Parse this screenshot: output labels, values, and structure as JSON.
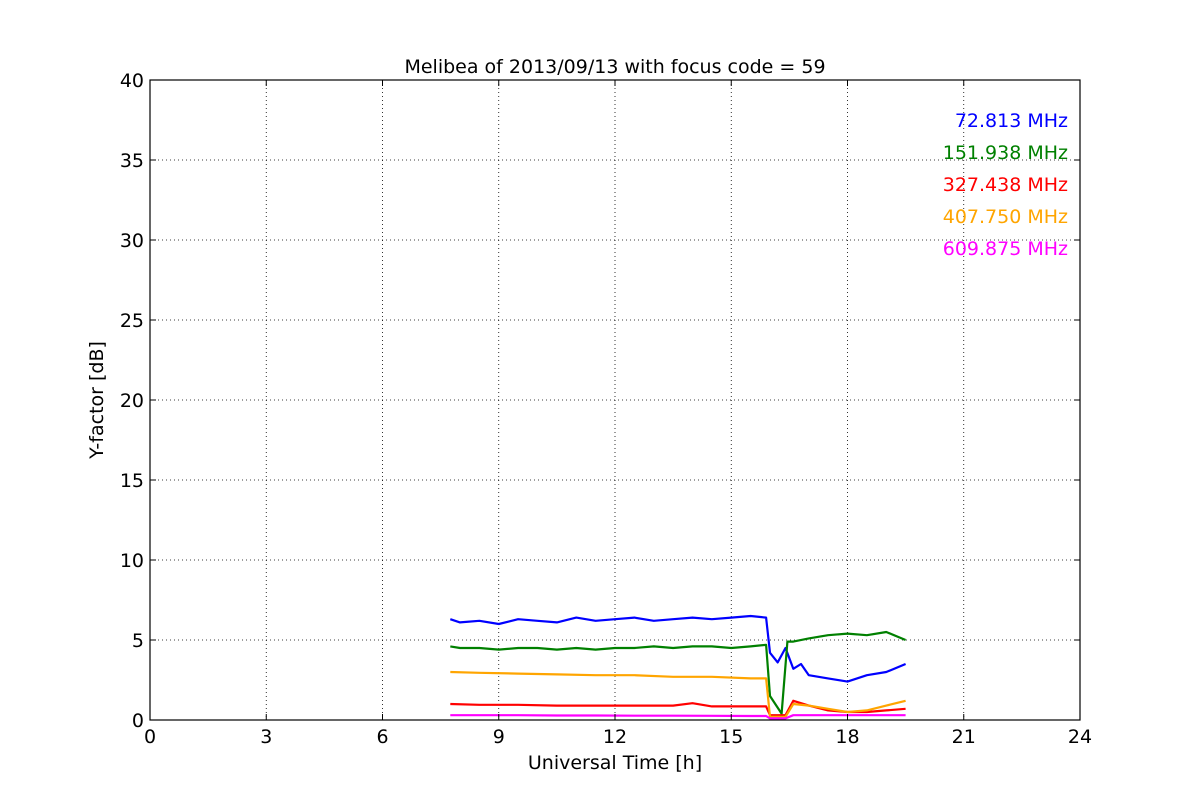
{
  "chart_data": {
    "type": "line",
    "title": "Melibea of 2013/09/13 with focus code = 59",
    "xlabel": "Universal Time [h]",
    "ylabel": "Y-factor [dB]",
    "xlim": [
      0,
      24
    ],
    "ylim": [
      0,
      40
    ],
    "xticks": [
      0,
      3,
      6,
      9,
      12,
      15,
      18,
      21,
      24
    ],
    "yticks": [
      0,
      5,
      10,
      15,
      20,
      25,
      30,
      35,
      40
    ],
    "grid": true,
    "legend_position": "top-right",
    "series": [
      {
        "name": "72.813 MHz",
        "color": "#0000ff",
        "x": [
          7.75,
          8.0,
          8.5,
          9.0,
          9.5,
          10.0,
          10.5,
          11.0,
          11.5,
          12.0,
          12.5,
          13.0,
          13.5,
          14.0,
          14.5,
          15.0,
          15.5,
          15.9,
          16.0,
          16.2,
          16.4,
          16.6,
          16.8,
          17.0,
          17.5,
          18.0,
          18.5,
          19.0,
          19.5
        ],
        "values": [
          6.3,
          6.1,
          6.2,
          6.0,
          6.3,
          6.2,
          6.1,
          6.4,
          6.2,
          6.3,
          6.4,
          6.2,
          6.3,
          6.4,
          6.3,
          6.4,
          6.5,
          6.4,
          4.2,
          3.6,
          4.5,
          3.2,
          3.5,
          2.8,
          2.6,
          2.4,
          2.8,
          3.0,
          3.5
        ]
      },
      {
        "name": "151.938 MHz",
        "color": "#008000",
        "x": [
          7.75,
          8.0,
          8.5,
          9.0,
          9.5,
          10.0,
          10.5,
          11.0,
          11.5,
          12.0,
          12.5,
          13.0,
          13.5,
          14.0,
          14.5,
          15.0,
          15.5,
          15.9,
          16.0,
          16.3,
          16.45,
          16.6,
          17.0,
          17.5,
          18.0,
          18.5,
          19.0,
          19.5
        ],
        "values": [
          4.6,
          4.5,
          4.5,
          4.4,
          4.5,
          4.5,
          4.4,
          4.5,
          4.4,
          4.5,
          4.5,
          4.6,
          4.5,
          4.6,
          4.6,
          4.5,
          4.6,
          4.7,
          1.5,
          0.4,
          4.9,
          4.9,
          5.1,
          5.3,
          5.4,
          5.3,
          5.5,
          5.0
        ]
      },
      {
        "name": "327.438 MHz",
        "color": "#ff0000",
        "x": [
          7.75,
          8.5,
          9.5,
          10.5,
          11.5,
          12.5,
          13.5,
          14.0,
          14.5,
          15.5,
          15.9,
          16.0,
          16.4,
          16.6,
          17.0,
          17.5,
          18.0,
          18.5,
          19.0,
          19.5
        ],
        "values": [
          1.0,
          0.95,
          0.95,
          0.9,
          0.9,
          0.9,
          0.9,
          1.05,
          0.85,
          0.85,
          0.85,
          0.3,
          0.3,
          1.2,
          0.9,
          0.6,
          0.5,
          0.5,
          0.6,
          0.7
        ]
      },
      {
        "name": "407.750 MHz",
        "color": "#ffa500",
        "x": [
          7.75,
          8.5,
          9.5,
          10.5,
          11.5,
          12.5,
          13.5,
          14.5,
          15.5,
          15.9,
          16.0,
          16.4,
          16.6,
          17.0,
          17.5,
          18.0,
          18.5,
          19.0,
          19.5
        ],
        "values": [
          3.0,
          2.95,
          2.9,
          2.85,
          2.8,
          2.8,
          2.7,
          2.7,
          2.6,
          2.6,
          0.2,
          0.2,
          1.0,
          0.9,
          0.7,
          0.5,
          0.6,
          0.9,
          1.2
        ]
      },
      {
        "name": "609.875 MHz",
        "color": "#ff00ff",
        "x": [
          7.75,
          8.5,
          9.5,
          10.5,
          11.5,
          12.5,
          13.5,
          14.5,
          15.5,
          15.9,
          16.0,
          16.4,
          16.6,
          17.5,
          18.5,
          19.5
        ],
        "values": [
          0.3,
          0.3,
          0.3,
          0.28,
          0.28,
          0.27,
          0.27,
          0.26,
          0.25,
          0.25,
          0.1,
          0.1,
          0.3,
          0.3,
          0.3,
          0.3
        ]
      }
    ]
  }
}
